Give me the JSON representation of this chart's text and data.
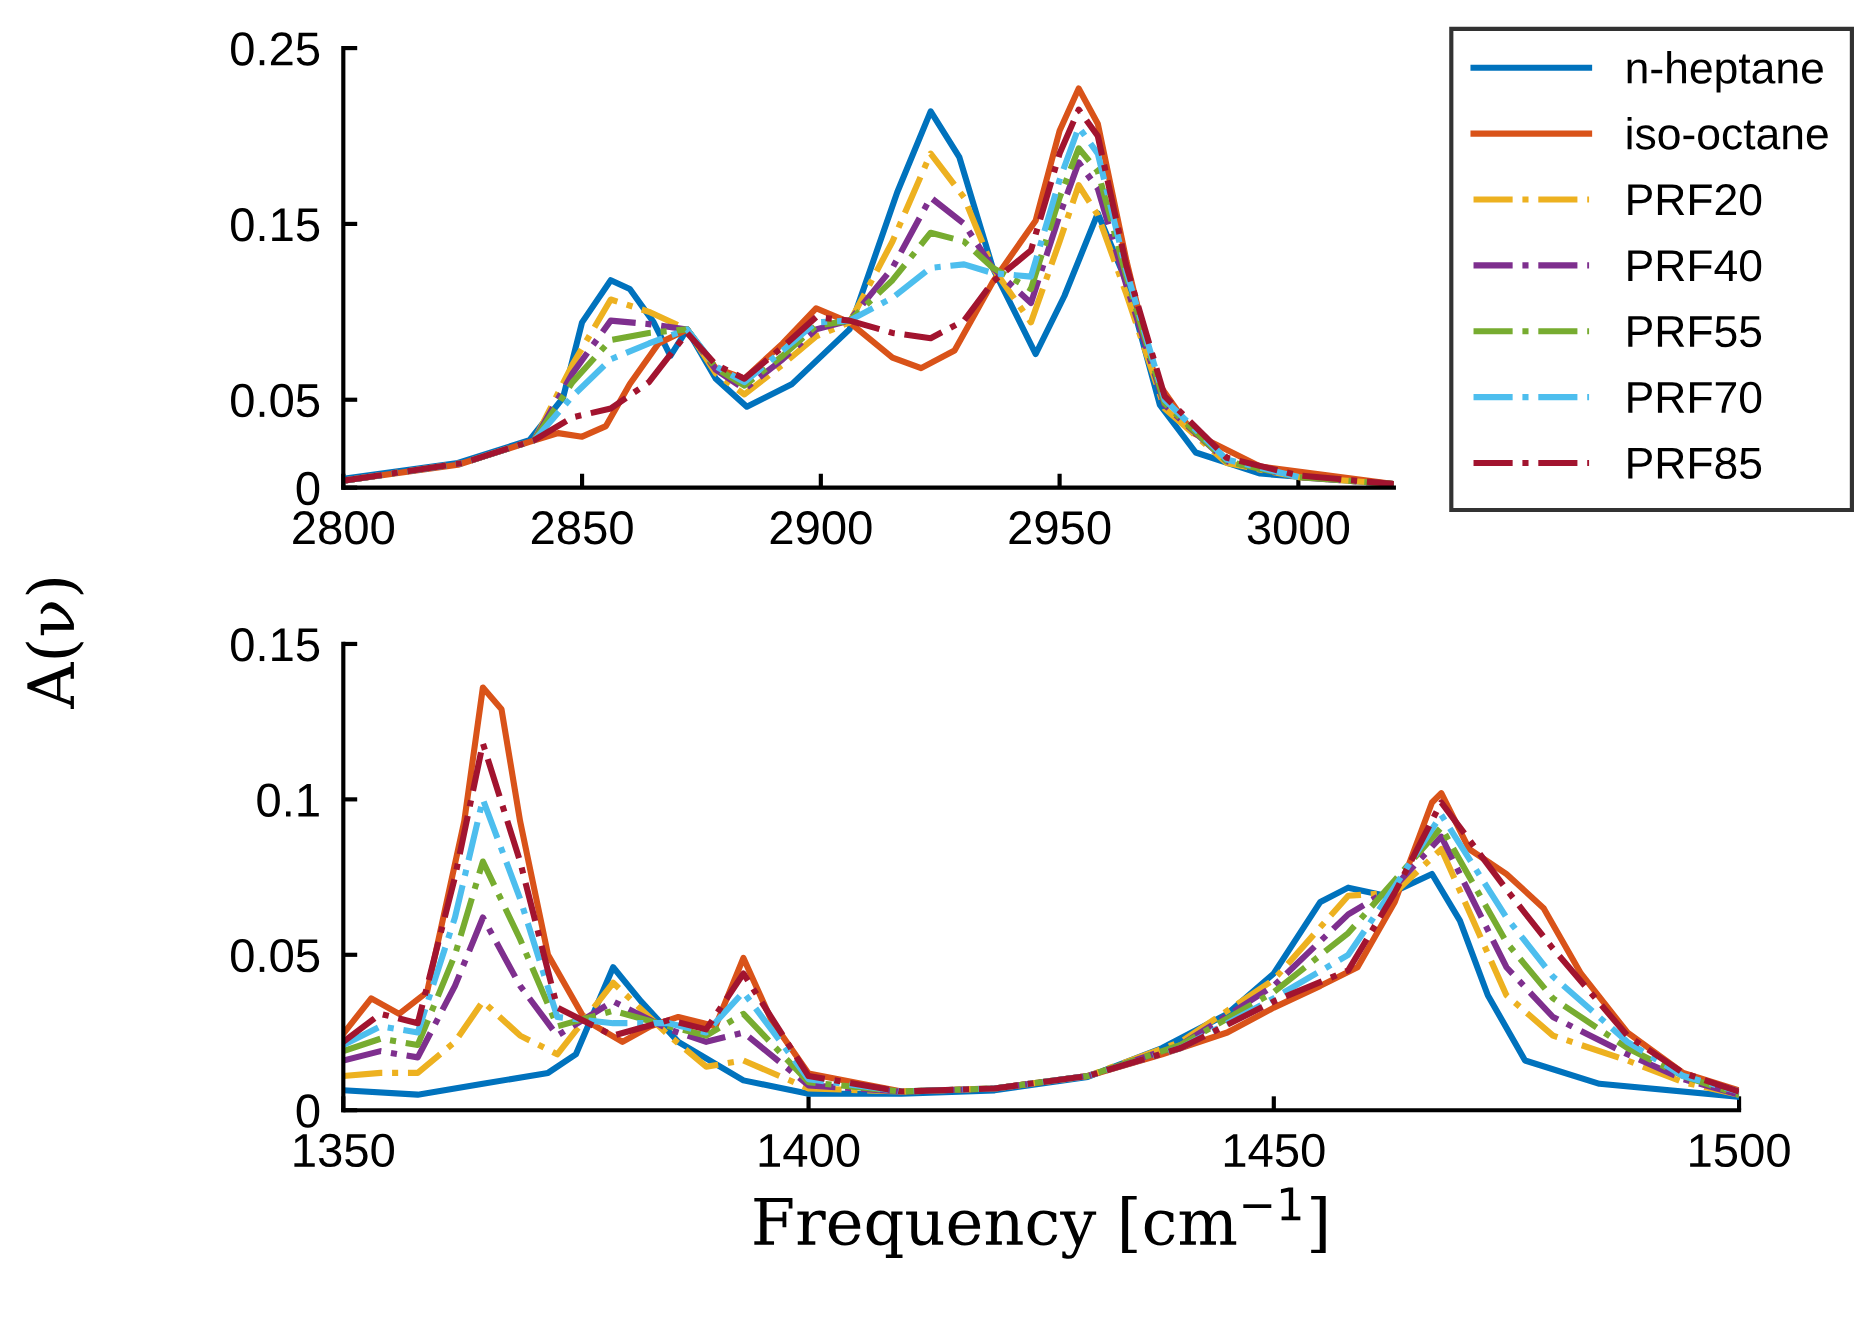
{
  "chart_data": [
    {
      "type": "line",
      "ylabel": "A(ν)",
      "xlim": [
        2800,
        3020
      ],
      "xticks": [
        2800,
        2850,
        2900,
        2950,
        3000
      ],
      "ylim": [
        0,
        0.25
      ],
      "yticks": [
        0,
        0.05,
        0.15,
        0.25
      ],
      "grid": false,
      "legend": "top right",
      "series": [
        {
          "name": "n-heptane",
          "color": "#0072bd",
          "line_style": "solid",
          "x": [
            2800,
            2824,
            2839,
            2846,
            2850,
            2856,
            2860,
            2865,
            2868.5,
            2872,
            2878,
            2884.5,
            2894,
            2906,
            2916,
            2923,
            2929,
            2936,
            2945,
            2951,
            2958,
            2964,
            2971,
            2978.5,
            2992,
            3020
          ],
          "values": [
            0.005,
            0.014,
            0.027,
            0.051,
            0.094,
            0.118,
            0.113,
            0.094,
            0.075,
            0.09,
            0.062,
            0.046,
            0.059,
            0.09,
            0.168,
            0.214,
            0.188,
            0.125,
            0.076,
            0.109,
            0.156,
            0.117,
            0.047,
            0.02,
            0.008,
            0.002
          ]
        },
        {
          "name": "iso-octane",
          "color": "#d95319",
          "line_style": "solid",
          "x": [
            2800,
            2824,
            2839,
            2845,
            2850,
            2855,
            2860,
            2866,
            2872,
            2878,
            2884,
            2892,
            2899,
            2906,
            2915,
            2921,
            2928,
            2936,
            2945,
            2950,
            2954,
            2958,
            2964,
            2970,
            2978,
            2992,
            3020
          ],
          "values": [
            0.004,
            0.013,
            0.026,
            0.031,
            0.029,
            0.035,
            0.059,
            0.082,
            0.09,
            0.068,
            0.062,
            0.082,
            0.102,
            0.094,
            0.074,
            0.068,
            0.078,
            0.117,
            0.152,
            0.203,
            0.227,
            0.207,
            0.129,
            0.062,
            0.031,
            0.012,
            0.002
          ]
        },
        {
          "name": "PRF20",
          "color": "#edb120",
          "line_style": "dashdot",
          "x": [
            2800,
            2825,
            2840,
            2848,
            2856,
            2864,
            2872,
            2878,
            2884,
            2892,
            2899,
            2906,
            2915,
            2923,
            2930,
            2936,
            2944,
            2950,
            2954,
            2958,
            2964,
            2972,
            2985,
            3000,
            3020
          ],
          "values": [
            0.004,
            0.014,
            0.027,
            0.07,
            0.107,
            0.1,
            0.09,
            0.065,
            0.053,
            0.07,
            0.086,
            0.094,
            0.14,
            0.19,
            0.165,
            0.125,
            0.094,
            0.14,
            0.172,
            0.155,
            0.11,
            0.045,
            0.014,
            0.006,
            0.002
          ]
        },
        {
          "name": "PRF40",
          "color": "#7e2f8e",
          "line_style": "dashdot",
          "x": [
            2800,
            2825,
            2840,
            2848,
            2856,
            2864,
            2872,
            2878,
            2884,
            2892,
            2899,
            2906,
            2915,
            2923,
            2930,
            2936,
            2944,
            2950,
            2954,
            2958,
            2964,
            2972,
            2985,
            3000,
            3020
          ],
          "values": [
            0.004,
            0.014,
            0.027,
            0.065,
            0.095,
            0.093,
            0.09,
            0.067,
            0.056,
            0.073,
            0.09,
            0.095,
            0.125,
            0.165,
            0.15,
            0.125,
            0.105,
            0.155,
            0.185,
            0.17,
            0.115,
            0.047,
            0.015,
            0.006,
            0.002
          ]
        },
        {
          "name": "PRF55",
          "color": "#77ac30",
          "line_style": "dashdot",
          "x": [
            2800,
            2825,
            2840,
            2848,
            2856,
            2864,
            2872,
            2878,
            2884,
            2892,
            2899,
            2906,
            2915,
            2923,
            2930,
            2936,
            2944,
            2950,
            2954,
            2958,
            2964,
            2972,
            2985,
            3000,
            3020
          ],
          "values": [
            0.004,
            0.014,
            0.027,
            0.06,
            0.084,
            0.088,
            0.09,
            0.068,
            0.058,
            0.075,
            0.092,
            0.095,
            0.118,
            0.145,
            0.14,
            0.125,
            0.113,
            0.165,
            0.193,
            0.18,
            0.12,
            0.048,
            0.015,
            0.006,
            0.002
          ]
        },
        {
          "name": "PRF70",
          "color": "#4dbeee",
          "line_style": "dashdot",
          "x": [
            2800,
            2825,
            2840,
            2848,
            2856,
            2864,
            2872,
            2878,
            2884,
            2892,
            2899,
            2906,
            2915,
            2923,
            2930,
            2936,
            2944,
            2950,
            2954,
            2958,
            2964,
            2972,
            2985,
            3000
          ],
          "values": [
            0.004,
            0.014,
            0.027,
            0.052,
            0.073,
            0.082,
            0.09,
            0.069,
            0.06,
            0.078,
            0.094,
            0.095,
            0.108,
            0.125,
            0.127,
            0.122,
            0.12,
            0.175,
            0.205,
            0.19,
            0.123,
            0.05,
            0.016,
            0.006
          ]
        },
        {
          "name": "PRF85",
          "color": "#a2142f",
          "line_style": "dashdot",
          "x": [
            2800,
            2825,
            2840,
            2848,
            2856,
            2864,
            2872,
            2878,
            2884,
            2892,
            2899,
            2906,
            2915,
            2923,
            2930,
            2936,
            2944,
            2950,
            2954,
            2958,
            2964,
            2972,
            2985,
            3000,
            3020
          ],
          "values": [
            0.004,
            0.014,
            0.027,
            0.04,
            0.045,
            0.06,
            0.088,
            0.07,
            0.062,
            0.08,
            0.097,
            0.095,
            0.088,
            0.085,
            0.095,
            0.117,
            0.135,
            0.19,
            0.215,
            0.2,
            0.126,
            0.052,
            0.017,
            0.007,
            0.002
          ]
        }
      ]
    },
    {
      "type": "line",
      "xlabel": "Frequency [cm$^{−1}$]",
      "xlim": [
        1350,
        1500
      ],
      "xticks": [
        1350,
        1400,
        1450,
        1500
      ],
      "ylim": [
        0,
        0.15
      ],
      "yticks": [
        0,
        0.05,
        0.1,
        0.15
      ],
      "grid": false,
      "series": [
        {
          "color": "#0072bd",
          "line_style": "solid",
          "x": [
            1350,
            1358,
            1365,
            1372,
            1375,
            1379,
            1382,
            1386,
            1393,
            1400,
            1410,
            1420,
            1430,
            1438,
            1445,
            1450,
            1455,
            1458,
            1462,
            1467,
            1470,
            1473,
            1477,
            1485,
            1500
          ],
          "values": [
            0.0064,
            0.005,
            0.0085,
            0.012,
            0.018,
            0.046,
            0.035,
            0.022,
            0.0096,
            0.0053,
            0.0053,
            0.0064,
            0.0107,
            0.02,
            0.031,
            0.044,
            0.067,
            0.0716,
            0.069,
            0.076,
            0.061,
            0.037,
            0.016,
            0.0085,
            0.0043
          ]
        },
        {
          "color": "#d95319",
          "line_style": "solid",
          "x": [
            1350,
            1353,
            1356,
            1359,
            1363,
            1365,
            1367,
            1369,
            1372,
            1376,
            1380,
            1383,
            1386,
            1390,
            1393,
            1396,
            1400,
            1410,
            1420,
            1430,
            1438,
            1445,
            1450,
            1455,
            1459,
            1463,
            1467,
            1468,
            1471,
            1475,
            1479,
            1483,
            1488,
            1494,
            1500
          ],
          "values": [
            0.0246,
            0.036,
            0.031,
            0.038,
            0.093,
            0.136,
            0.129,
            0.093,
            0.05,
            0.029,
            0.022,
            0.027,
            0.03,
            0.027,
            0.049,
            0.029,
            0.0118,
            0.006,
            0.007,
            0.011,
            0.018,
            0.025,
            0.033,
            0.04,
            0.046,
            0.067,
            0.099,
            0.102,
            0.084,
            0.076,
            0.065,
            0.044,
            0.025,
            0.012,
            0.0064
          ]
        },
        {
          "color": "#edb120",
          "line_style": "dashdot",
          "x": [
            1350,
            1354,
            1358,
            1362,
            1365,
            1369,
            1373,
            1379,
            1385,
            1389,
            1393,
            1400,
            1410,
            1420,
            1430,
            1440,
            1450,
            1458,
            1463,
            1468,
            1475,
            1480,
            1488,
            1494,
            1500
          ],
          "values": [
            0.011,
            0.012,
            0.012,
            0.022,
            0.035,
            0.024,
            0.018,
            0.041,
            0.024,
            0.014,
            0.016,
            0.007,
            0.006,
            0.007,
            0.011,
            0.022,
            0.042,
            0.069,
            0.07,
            0.084,
            0.037,
            0.024,
            0.016,
            0.009,
            0.005
          ]
        },
        {
          "color": "#7e2f8e",
          "line_style": "dashdot",
          "x": [
            1350,
            1354,
            1358,
            1362,
            1365,
            1369,
            1373,
            1379,
            1385,
            1389,
            1393,
            1400,
            1410,
            1420,
            1430,
            1440,
            1450,
            1458,
            1463,
            1468,
            1475,
            1480,
            1488,
            1494,
            1500
          ],
          "values": [
            0.016,
            0.019,
            0.017,
            0.04,
            0.062,
            0.04,
            0.024,
            0.035,
            0.026,
            0.022,
            0.025,
            0.008,
            0.006,
            0.007,
            0.011,
            0.021,
            0.04,
            0.063,
            0.072,
            0.088,
            0.046,
            0.03,
            0.018,
            0.01,
            0.005
          ]
        },
        {
          "color": "#77ac30",
          "line_style": "dashdot",
          "x": [
            1350,
            1354,
            1358,
            1362,
            1365,
            1369,
            1373,
            1379,
            1385,
            1389,
            1393,
            1400,
            1410,
            1420,
            1430,
            1440,
            1450,
            1458,
            1463,
            1468,
            1475,
            1480,
            1488,
            1494,
            1500
          ],
          "values": [
            0.019,
            0.023,
            0.021,
            0.05,
            0.08,
            0.055,
            0.027,
            0.032,
            0.027,
            0.024,
            0.031,
            0.009,
            0.006,
            0.007,
            0.011,
            0.021,
            0.038,
            0.057,
            0.074,
            0.091,
            0.054,
            0.036,
            0.02,
            0.011,
            0.005
          ]
        },
        {
          "color": "#4dbeee",
          "line_style": "dashdot",
          "x": [
            1350,
            1354,
            1358,
            1362,
            1365,
            1369,
            1373,
            1379,
            1385,
            1389,
            1393,
            1400,
            1410,
            1420,
            1430,
            1440,
            1450,
            1458,
            1463,
            1468,
            1475,
            1480,
            1488,
            1494,
            1500
          ],
          "values": [
            0.021,
            0.027,
            0.025,
            0.062,
            0.1,
            0.068,
            0.03,
            0.028,
            0.028,
            0.025,
            0.038,
            0.01,
            0.006,
            0.007,
            0.011,
            0.02,
            0.036,
            0.05,
            0.072,
            0.095,
            0.062,
            0.043,
            0.022,
            0.011,
            0.006
          ]
        },
        {
          "color": "#a2142f",
          "line_style": "dashdot",
          "x": [
            1350,
            1354,
            1358,
            1362,
            1365,
            1369,
            1373,
            1379,
            1385,
            1389,
            1393,
            1400,
            1410,
            1420,
            1430,
            1440,
            1450,
            1458,
            1463,
            1468,
            1475,
            1480,
            1488,
            1494,
            1500
          ],
          "values": [
            0.022,
            0.031,
            0.028,
            0.075,
            0.118,
            0.08,
            0.033,
            0.024,
            0.029,
            0.026,
            0.044,
            0.011,
            0.006,
            0.007,
            0.011,
            0.02,
            0.035,
            0.045,
            0.07,
            0.099,
            0.071,
            0.052,
            0.024,
            0.012,
            0.006
          ]
        }
      ]
    }
  ]
}
